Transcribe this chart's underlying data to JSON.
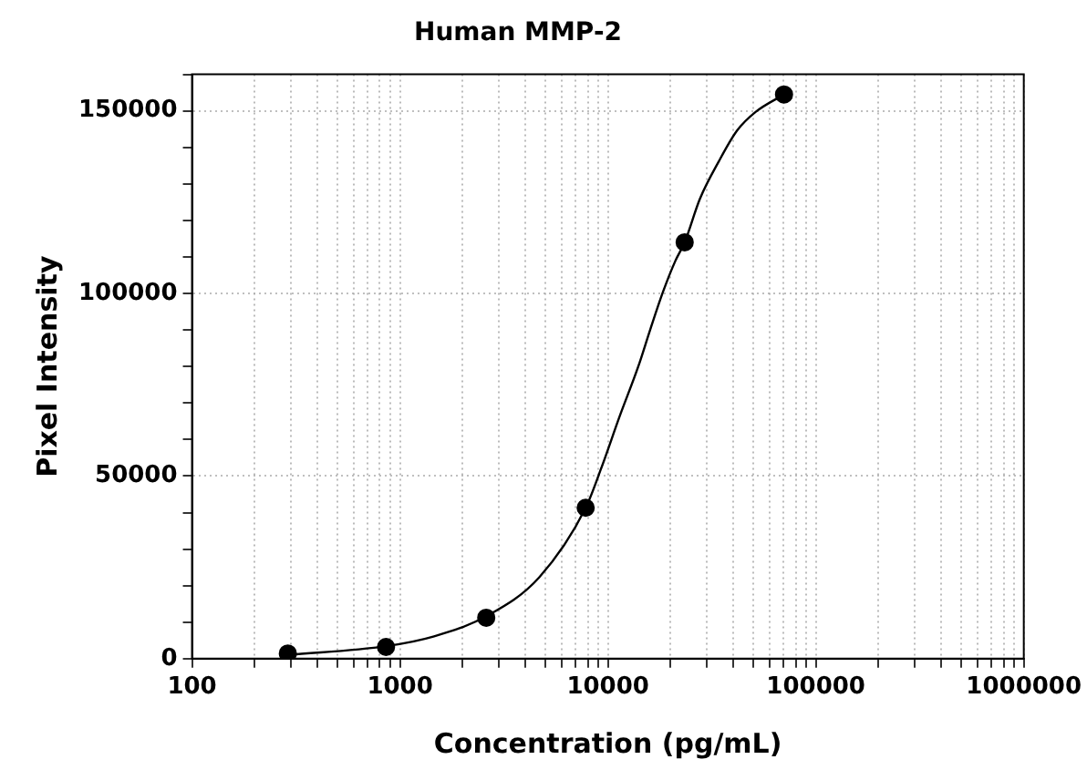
{
  "chart_data": {
    "type": "scatter",
    "title": "Human MMP-2",
    "xlabel": "Concentration (pg/mL)",
    "ylabel": "Pixel Intensity",
    "log": "x",
    "grid": true,
    "legend": false,
    "marker": "circle",
    "xlim": [
      100,
      1000000
    ],
    "ylim": [
      0,
      160000
    ],
    "xticks": [
      100,
      {
        "value": 200,
        "label": null
      },
      {
        "value": 300,
        "label": null
      },
      {
        "value": 400,
        "label": null
      },
      {
        "value": 500,
        "label": null
      },
      {
        "value": 600,
        "label": null
      },
      {
        "value": 700,
        "label": null
      },
      {
        "value": 800,
        "label": null
      },
      {
        "value": 900,
        "label": null
      },
      1000,
      {
        "value": 2000,
        "label": null
      },
      {
        "value": 3000,
        "label": null
      },
      {
        "value": 4000,
        "label": null
      },
      {
        "value": 5000,
        "label": null
      },
      {
        "value": 6000,
        "label": null
      },
      {
        "value": 7000,
        "label": null
      },
      {
        "value": 8000,
        "label": null
      },
      {
        "value": 9000,
        "label": null
      },
      10000,
      {
        "value": 20000,
        "label": null
      },
      {
        "value": 30000,
        "label": null
      },
      {
        "value": 40000,
        "label": null
      },
      {
        "value": 50000,
        "label": null
      },
      {
        "value": 60000,
        "label": null
      },
      {
        "value": 70000,
        "label": null
      },
      {
        "value": 80000,
        "label": null
      },
      {
        "value": 90000,
        "label": null
      },
      100000,
      {
        "value": 200000,
        "label": null
      },
      {
        "value": 300000,
        "label": null
      },
      {
        "value": 400000,
        "label": null
      },
      {
        "value": 500000,
        "label": null
      },
      {
        "value": 600000,
        "label": null
      },
      {
        "value": 700000,
        "label": null
      },
      {
        "value": 800000,
        "label": null
      },
      {
        "value": 900000,
        "label": null
      },
      1000000
    ],
    "yticks": [
      0,
      {
        "value": 10000,
        "label": null
      },
      {
        "value": 20000,
        "label": null
      },
      {
        "value": 30000,
        "label": null
      },
      {
        "value": 40000,
        "label": null
      },
      50000,
      {
        "value": 60000,
        "label": null
      },
      {
        "value": 70000,
        "label": null
      },
      {
        "value": 80000,
        "label": null
      },
      {
        "value": 90000,
        "label": null
      },
      100000,
      {
        "value": 110000,
        "label": null
      },
      {
        "value": 120000,
        "label": null
      },
      {
        "value": 130000,
        "label": null
      },
      {
        "value": 140000,
        "label": null
      },
      150000,
      {
        "value": 160000,
        "label": null
      }
    ],
    "series": [
      {
        "type": "line",
        "color": "#000000",
        "marker": "none",
        "x": [
          289,
          857,
          1460,
          2600,
          4680,
          7820,
          9270,
          11400,
          14000,
          16000,
          18400,
          21100,
          23400,
          27700,
          34100,
          41800,
          51300,
          70300
        ],
        "values": [
          1000,
          3400,
          6100,
          11600,
          22300,
          41300,
          52000,
          66400,
          80000,
          90200,
          100400,
          108900,
          114000,
          125900,
          136100,
          144600,
          149700,
          154500
        ]
      },
      {
        "color": "#000000",
        "x": [
          289,
          857,
          2600,
          7820,
          23400,
          70300
        ],
        "values": [
          1400,
          3200,
          11200,
          41300,
          114000,
          154500
        ]
      }
    ]
  }
}
